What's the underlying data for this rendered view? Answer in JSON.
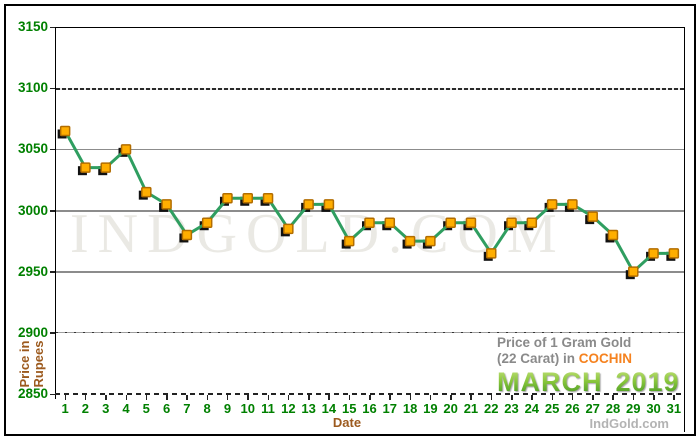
{
  "title": {
    "line1": "Price of 1 Gram Gold",
    "line2_prefix": "(22 Carat) in ",
    "line2_highlight": "COCHIN",
    "month": "MARCH",
    "year": "2019"
  },
  "watermark": "IndGold.com",
  "footer": {
    "brand": "IndGold.com"
  },
  "axes": {
    "x_label": "Date",
    "y_label_line1": "Price in",
    "y_label_line2": "Rupees"
  },
  "colors": {
    "tick_green": "#008000",
    "axis_label_brown": "#9C5A1E",
    "title_gray": "#8A8A8A",
    "cochin_orange": "#F5821F",
    "march_green": "#4D9E2D",
    "line_green": "#2F9E60",
    "marker_orange": "#FFAE00",
    "marker_border": "#B26D00",
    "marker_shadow": "#111111",
    "watermark_gray": "#EAE9E4",
    "footer_gray": "#B3B3B3"
  },
  "chart_data": {
    "type": "line",
    "title": "Price of 1 Gram Gold (22 Carat) in COCHIN - MARCH 2019",
    "xlabel": "Date",
    "ylabel": "Price in Rupees",
    "x": [
      1,
      2,
      3,
      4,
      5,
      6,
      7,
      8,
      9,
      10,
      11,
      12,
      13,
      14,
      15,
      16,
      17,
      18,
      19,
      20,
      21,
      22,
      23,
      24,
      25,
      26,
      27,
      28,
      29,
      30,
      31
    ],
    "values": [
      3065,
      3035,
      3035,
      3050,
      3015,
      3005,
      2980,
      2990,
      3010,
      3010,
      3010,
      2985,
      3005,
      3005,
      2975,
      2990,
      2990,
      2975,
      2975,
      2990,
      2990,
      2965,
      2990,
      2990,
      3005,
      3005,
      2995,
      2980,
      2950,
      2965,
      2965
    ],
    "ylim": [
      2850,
      3150
    ],
    "y_ticks": [
      2850,
      2900,
      2950,
      3000,
      3050,
      3100,
      3150
    ],
    "x_ticks": [
      1,
      2,
      3,
      4,
      5,
      6,
      7,
      8,
      9,
      10,
      11,
      12,
      13,
      14,
      15,
      16,
      17,
      18,
      19,
      20,
      21,
      22,
      23,
      24,
      25,
      26,
      27,
      28,
      29,
      30,
      31
    ],
    "grid": true,
    "legend_position": "none",
    "marker": "square"
  }
}
